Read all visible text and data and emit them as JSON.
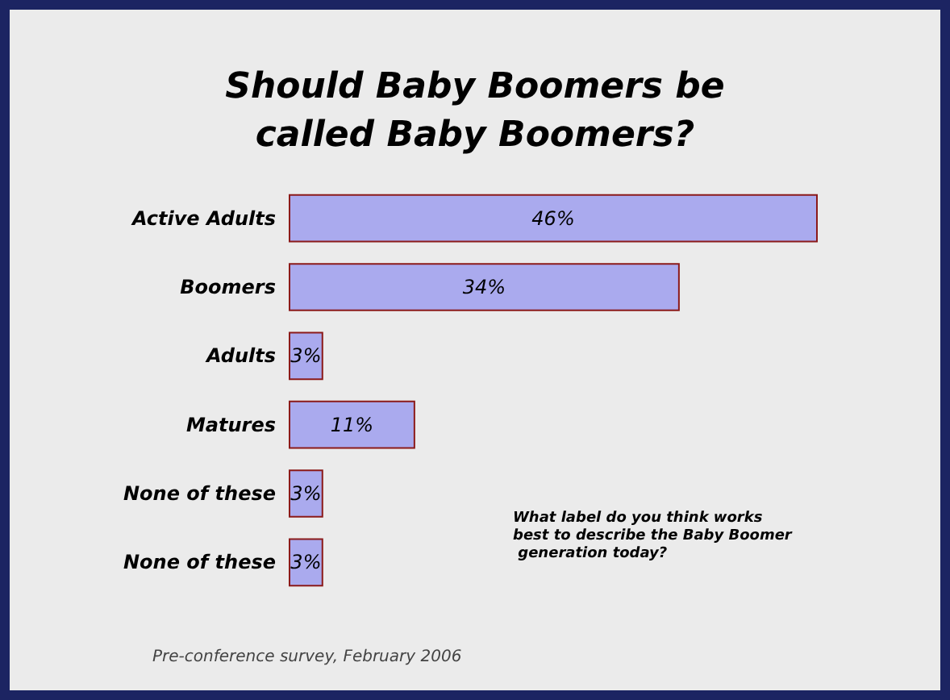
{
  "chart_data": {
    "type": "bar",
    "orientation": "horizontal",
    "title": "Should Baby Boomers be\ncalled Baby Boomers?",
    "categories": [
      "Active Adults",
      "Boomers",
      "Adults",
      "Matures",
      "None of these",
      "None of these"
    ],
    "values": [
      46,
      34,
      3,
      11,
      3,
      3
    ],
    "value_labels": [
      "46%",
      "34%",
      "3%",
      "11%",
      "3%",
      "3%"
    ],
    "color": "#aaaaee",
    "annotations": [
      "What label do you think works best to describe the Baby Boomer generation today?",
      "Pre-conference survey, February 2006"
    ]
  }
}
